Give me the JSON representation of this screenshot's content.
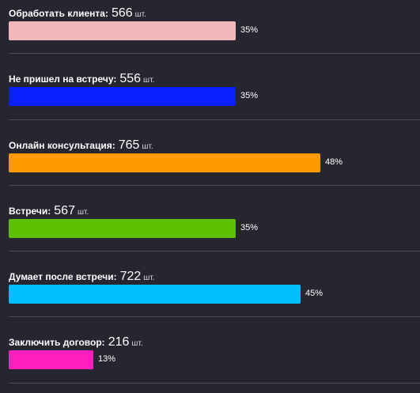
{
  "unit": "шт.",
  "stages": [
    {
      "name": "Обработать клиента:",
      "count": "566",
      "percent_label": "35%",
      "percent": 35,
      "color": "#f0b8b8"
    },
    {
      "name": "Не пришел на встречу:",
      "count": "556",
      "percent_label": "35%",
      "percent": 35,
      "color": "#0a1fff"
    },
    {
      "name": "Онлайн консультация:",
      "count": "765",
      "percent_label": "48%",
      "percent": 48,
      "color": "#ff9900"
    },
    {
      "name": "Встречи:",
      "count": "567",
      "percent_label": "35%",
      "percent": 35,
      "color": "#5cbf00"
    },
    {
      "name": "Думает после встречи:",
      "count": "722",
      "percent_label": "45%",
      "percent": 45,
      "color": "#00bfff"
    },
    {
      "name": "Заключить договор:",
      "count": "216",
      "percent_label": "13%",
      "percent": 13,
      "color": "#ff1fbf"
    }
  ]
}
